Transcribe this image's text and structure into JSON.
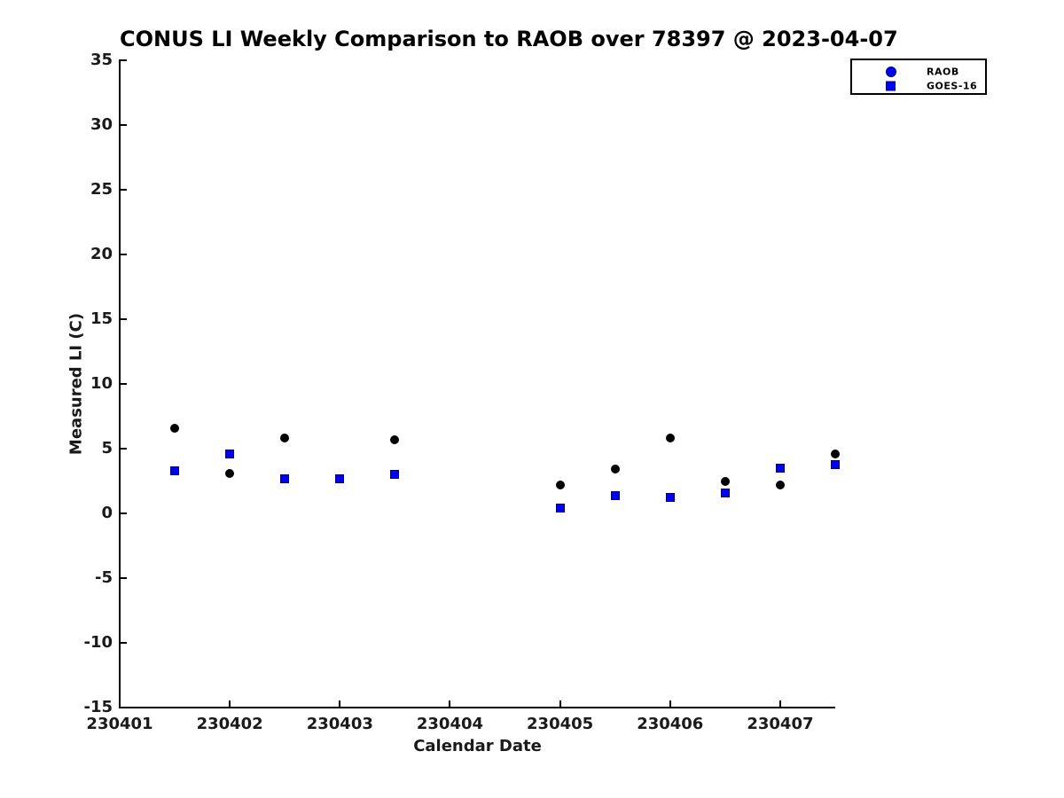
{
  "chart_data": {
    "type": "scatter",
    "title": "CONUS LI Weekly Comparison to RAOB over 78397 @ 2023-04-07",
    "xlabel": "Calendar Date",
    "ylabel": "Measured LI (C)",
    "xlim": [
      230401,
      230407.5
    ],
    "ylim": [
      -15,
      35
    ],
    "xticks": [
      230401,
      230402,
      230403,
      230404,
      230405,
      230406,
      230407
    ],
    "yticks": [
      -15,
      -10,
      -5,
      0,
      5,
      10,
      15,
      20,
      25,
      30,
      35
    ],
    "grid": false,
    "legend_position": "top-right-outside-plot",
    "colors": {
      "raob_marker": "#000000",
      "goes16_marker": "#0202ee",
      "legend_marker": "#0202ee",
      "axis": "#000000",
      "text": "#1a1a1a"
    },
    "series": [
      {
        "name": "RAOB",
        "marker": "circle",
        "color": "#000000",
        "legend_color": "#0202ee",
        "x": [
          230401.5,
          230402.0,
          230402.5,
          230403.0,
          230403.5,
          230405.0,
          230405.5,
          230406.0,
          230406.5,
          230407.0,
          230407.5
        ],
        "y": [
          6.6,
          3.1,
          5.8,
          2.7,
          5.7,
          2.2,
          3.4,
          5.8,
          2.5,
          2.2,
          4.6
        ]
      },
      {
        "name": "GOES-16",
        "marker": "square",
        "color": "#0202ee",
        "legend_color": "#0202ee",
        "x": [
          230401.5,
          230402.0,
          230402.5,
          230403.0,
          230403.5,
          230405.0,
          230405.5,
          230406.0,
          230406.5,
          230407.0,
          230407.5
        ],
        "y": [
          3.3,
          4.6,
          2.7,
          2.7,
          3.0,
          0.4,
          1.4,
          1.2,
          1.6,
          3.5,
          3.8
        ]
      }
    ]
  }
}
